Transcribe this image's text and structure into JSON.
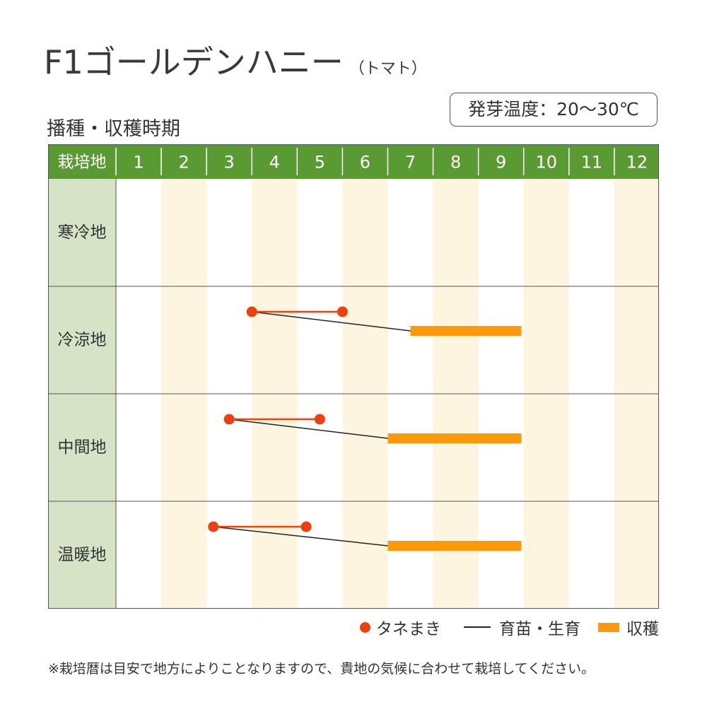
{
  "title": "F1ゴールデンハニー",
  "title_sub": "（トマト）",
  "section_label": "播種・収穫時期",
  "germination_temp": "発芽温度：20～30℃",
  "colors": {
    "header_green": "#5a9a32",
    "label_bg": "#d6e3c6",
    "stripe": "#fdf5df",
    "sow": "#ef3f0c",
    "seedling": "#222222",
    "harvest": "#ff9909"
  },
  "chart_data": {
    "type": "gantt",
    "header_label": "栽培地",
    "months": [
      "1",
      "2",
      "3",
      "4",
      "5",
      "6",
      "7",
      "8",
      "9",
      "10",
      "11",
      "12"
    ],
    "rows": [
      {
        "region": "寒冷地"
      },
      {
        "region": "冷涼地",
        "sow": [
          4.0,
          6.0
        ],
        "seedling": [
          4.0,
          7.5
        ],
        "harvest": [
          7.5,
          9.95
        ]
      },
      {
        "region": "中間地",
        "sow": [
          3.5,
          5.5
        ],
        "seedling": [
          3.5,
          7.0
        ],
        "harvest": [
          7.0,
          9.95
        ]
      },
      {
        "region": "温暖地",
        "sow": [
          3.15,
          5.2
        ],
        "seedling": [
          3.15,
          7.0
        ],
        "harvest": [
          7.0,
          9.95
        ]
      }
    ],
    "legend": {
      "sow": "タネまき",
      "seedling": "育苗・生育",
      "harvest": "収穫"
    }
  },
  "footnote": "※栽培暦は目安で地方によりことなりますので、貴地の気候に合わせて栽培してください。"
}
